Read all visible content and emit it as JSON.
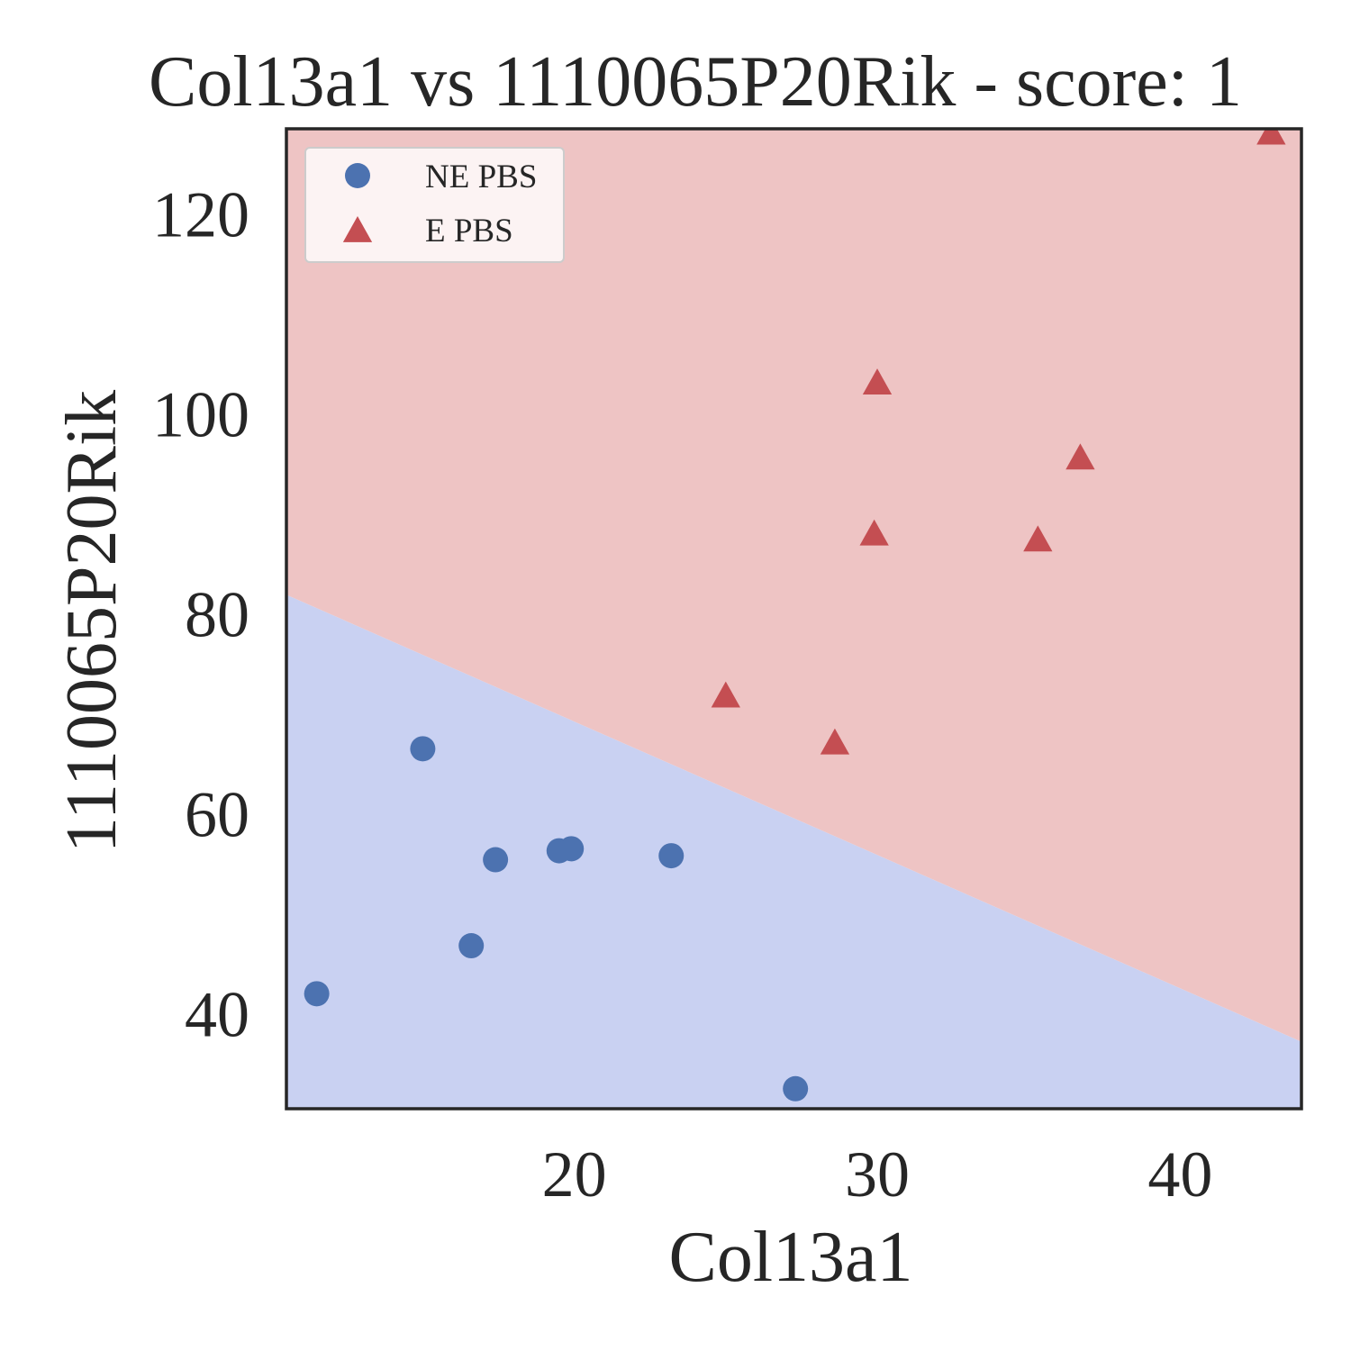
{
  "chart_data": {
    "type": "scatter",
    "title": "Col13a1 vs 1110065P20Rik - score: 1",
    "xlabel": "Col13a1",
    "ylabel": "1110065P20Rik",
    "xlim": [
      10.5,
      44.0
    ],
    "ylim": [
      30.5,
      128.5
    ],
    "xticks": [
      20,
      30,
      40
    ],
    "yticks": [
      40,
      60,
      80,
      100,
      120
    ],
    "grid": false,
    "legend_position": "upper-left",
    "decision_boundary": {
      "line": [
        [
          10.5,
          81.9
        ],
        [
          44.0,
          37.2
        ]
      ],
      "regions": [
        {
          "class": "NE PBS",
          "side": "below",
          "color": "#c9d1f2"
        },
        {
          "class": "E PBS",
          "side": "above",
          "color": "#eec4c4"
        }
      ]
    },
    "series": [
      {
        "name": "NE PBS",
        "marker": "circle",
        "color": "#4c72b0",
        "points": [
          {
            "x": 11.5,
            "y": 42.0
          },
          {
            "x": 15.0,
            "y": 66.5
          },
          {
            "x": 16.6,
            "y": 46.8
          },
          {
            "x": 17.4,
            "y": 55.4
          },
          {
            "x": 19.5,
            "y": 56.3
          },
          {
            "x": 19.9,
            "y": 56.5
          },
          {
            "x": 23.2,
            "y": 55.8
          },
          {
            "x": 27.3,
            "y": 32.5
          }
        ]
      },
      {
        "name": "E PBS",
        "marker": "triangle",
        "color": "#c44e52",
        "points": [
          {
            "x": 25.0,
            "y": 71.7
          },
          {
            "x": 28.6,
            "y": 67.0
          },
          {
            "x": 29.9,
            "y": 87.9
          },
          {
            "x": 30.0,
            "y": 103.0
          },
          {
            "x": 35.3,
            "y": 87.3
          },
          {
            "x": 36.7,
            "y": 95.5
          },
          {
            "x": 43.0,
            "y": 128.0
          }
        ]
      }
    ]
  }
}
